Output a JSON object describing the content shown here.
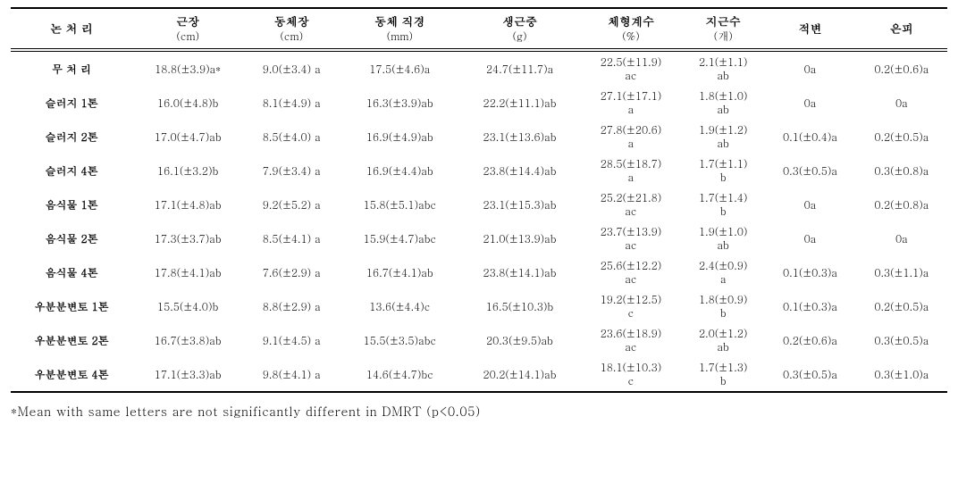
{
  "columns": [
    {
      "label": "논 처 리",
      "unit": ""
    },
    {
      "label": "근장",
      "unit": "(cm)"
    },
    {
      "label": "동체장",
      "unit": "(cm)"
    },
    {
      "label": "동체\n직경",
      "unit": "(mm)"
    },
    {
      "label": "생근중",
      "unit": "(g)"
    },
    {
      "label": "체형계수",
      "unit": "(%)"
    },
    {
      "label": "지근수",
      "unit": "(개)"
    },
    {
      "label": "적변",
      "unit": ""
    },
    {
      "label": "은피",
      "unit": ""
    }
  ],
  "rows": [
    {
      "label": "무 처 리",
      "c1": "18.8(±3.9)a*",
      "c2": "9.0(±3.4) a",
      "c3": "17.5(±4.6)a",
      "c4": "24.7(±11.7)a",
      "c5a": "22.5(±11.9)",
      "c5b": "ac",
      "c6a": "2.1(±1.1)",
      "c6b": "ab",
      "c7": "0a",
      "c8": "0.2(±0.6)a"
    },
    {
      "label": "슬러지 1톤",
      "c1": "16.0(±4.8)b",
      "c2": "8.1(±4.9) a",
      "c3": "16.3(±3.9)ab",
      "c4": "22.2(±11.1)ab",
      "c5a": "27.1(±17.1)",
      "c5b": "a",
      "c6a": "1.8(±1.0)",
      "c6b": "ab",
      "c7": "0a",
      "c8": "0a"
    },
    {
      "label": "슬러지 2톤",
      "c1": "17.0(±4.7)ab",
      "c2": "8.5(±4.0) a",
      "c3": "16.9(±4.9)ab",
      "c4": "23.1(±13.6)ab",
      "c5a": "27.8(±20.6)",
      "c5b": "a",
      "c6a": "1.9(±1.2)",
      "c6b": "ab",
      "c7": "0.1(±0.4)a",
      "c8": "0.2(±0.5)a"
    },
    {
      "label": "슬러지 4톤",
      "c1": "16.1(±3.2)b",
      "c2": "7.9(±3.4) a",
      "c3": "16.9(±4.4)ab",
      "c4": "23.8(±14.4)ab",
      "c5a": "28.5(±18.7)",
      "c5b": "a",
      "c6a": "1.7(±1.1)",
      "c6b": "b",
      "c7": "0.3(±0.5)a",
      "c8": "0.3(±0.8)a"
    },
    {
      "label": "음식물 1톤",
      "c1": "17.1(±4.8)ab",
      "c2": "9.2(±5.2) a",
      "c3": "15.8(±5.1)abc",
      "c4": "23.1(±15.3)ab",
      "c5a": "25.2(±21.8)",
      "c5b": "ac",
      "c6a": "1.7(±1.4)",
      "c6b": "b",
      "c7": "0a",
      "c8": "0.2(±0.8)a"
    },
    {
      "label": "음식물 2톤",
      "c1": "17.3(±3.7)ab",
      "c2": "8.5(±4.1) a",
      "c3": "15.9(±4.7)abc",
      "c4": "21.0(±13.9)ab",
      "c5a": "23.7(±13.9)",
      "c5b": "ac",
      "c6a": "1.9(±1.0)",
      "c6b": "ab",
      "c7": "0a",
      "c8": "0a"
    },
    {
      "label": "음식물 4톤",
      "c1": "17.8(±4.1)ab",
      "c2": "7.6(±2.9) a",
      "c3": "16.7(±4.1)ab",
      "c4": "23.8(±14.1)ab",
      "c5a": "25.6(±12.2)",
      "c5b": "ac",
      "c6a": "2.4(±0.9)",
      "c6b": "a",
      "c7": "0.1(±0.3)a",
      "c8": "0.3(±1.1)a"
    },
    {
      "label": "우분분변토 1톤",
      "c1": "15.5(±4.0)b",
      "c2": "8.8(±2.9) a",
      "c3": "13.6(±4.4)c",
      "c4": "16.5(±10.3)b",
      "c5a": "19.2(±12.5)",
      "c5b": "c",
      "c6a": "1.8(±0.9)",
      "c6b": "b",
      "c7": "0.1(±0.3)a",
      "c8": "0.2(±0.5)a"
    },
    {
      "label": "우분분변토 2톤",
      "c1": "16.7(±3.8)ab",
      "c2": "9.1(±4.5) a",
      "c3": "15.5(±3.5)abc",
      "c4": "20.3(±9.5)ab",
      "c5a": "23.6(±18.9)",
      "c5b": "ac",
      "c6a": "2.0(±1.2)",
      "c6b": "ab",
      "c7": "0.2(±0.6)a",
      "c8": "0.3(±0.5)a"
    },
    {
      "label": "우분분변토 4톤",
      "c1": "17.1(±3.3)ab",
      "c2": "9.8(±4.1) a",
      "c3": "14.6(±4.7)bc",
      "c4": "20.2(±14.1)ab",
      "c5a": "18.1(±10.3)",
      "c5b": "c",
      "c6a": "1.7(±1.3)",
      "c6b": "b",
      "c7": "0.3(±0.5)a",
      "c8": "0.3(±1.0)a"
    }
  ],
  "footnote": "*Mean with same letters are not significantly different in DMRT (p<0.05)"
}
